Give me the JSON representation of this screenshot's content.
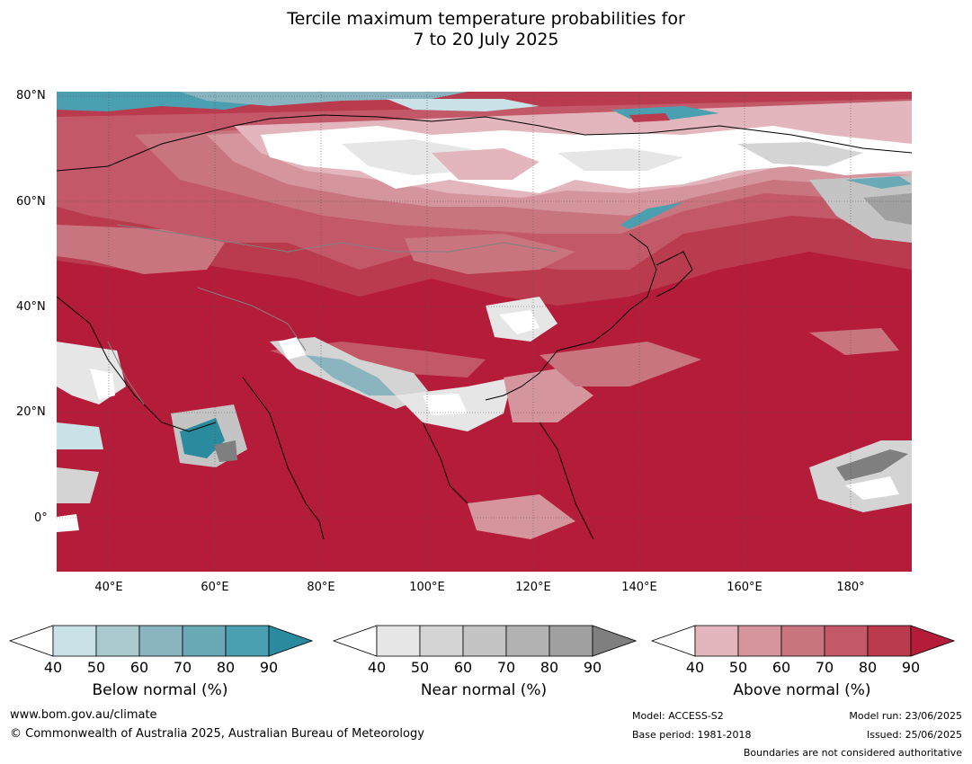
{
  "title_line1": "Tercile maximum temperature probabilities for",
  "title_line2": "7 to 20 July 2025",
  "map": {
    "lat_labels": [
      "80°N",
      "60°N",
      "40°N",
      "20°N",
      "0°"
    ],
    "lon_labels": [
      "40°E",
      "60°E",
      "80°E",
      "100°E",
      "120°E",
      "140°E",
      "160°E",
      "180°"
    ],
    "extent": {
      "lon_min": 30,
      "lon_max": 192,
      "lat_min": -10,
      "lat_max": 81
    }
  },
  "colorbars": [
    {
      "title": "Below normal (%)",
      "ticks": [
        "40",
        "50",
        "60",
        "70",
        "80",
        "90"
      ],
      "colors": [
        "#ffffff",
        "#c8e2e8",
        "#a9c9cf",
        "#8ab5c0",
        "#6aaab6",
        "#4aa0b0",
        "#2a8a9e"
      ]
    },
    {
      "title": "Near normal (%)",
      "ticks": [
        "40",
        "50",
        "60",
        "70",
        "80",
        "90"
      ],
      "colors": [
        "#ffffff",
        "#e6e6e6",
        "#d4d4d4",
        "#c4c4c4",
        "#b2b2b2",
        "#a0a0a0",
        "#7f7f7f"
      ]
    },
    {
      "title": "Above normal (%)",
      "ticks": [
        "40",
        "50",
        "60",
        "70",
        "80",
        "90"
      ],
      "colors": [
        "#ffffff",
        "#e2b6bc",
        "#d4959c",
        "#c97580",
        "#c35968",
        "#ba3a4e",
        "#b51c3a"
      ]
    }
  ],
  "footer": {
    "website": "www.bom.gov.au/climate",
    "copyright": "© Commonwealth of Australia 2025, Australian Bureau of Meteorology",
    "model": "Model: ACCESS-S2",
    "base_period": "Base period: 1981-2018",
    "model_run": "Model run: 23/06/2025",
    "issued": "Issued: 25/06/2025",
    "boundaries_note": "Boundaries are not considered authoritative"
  }
}
